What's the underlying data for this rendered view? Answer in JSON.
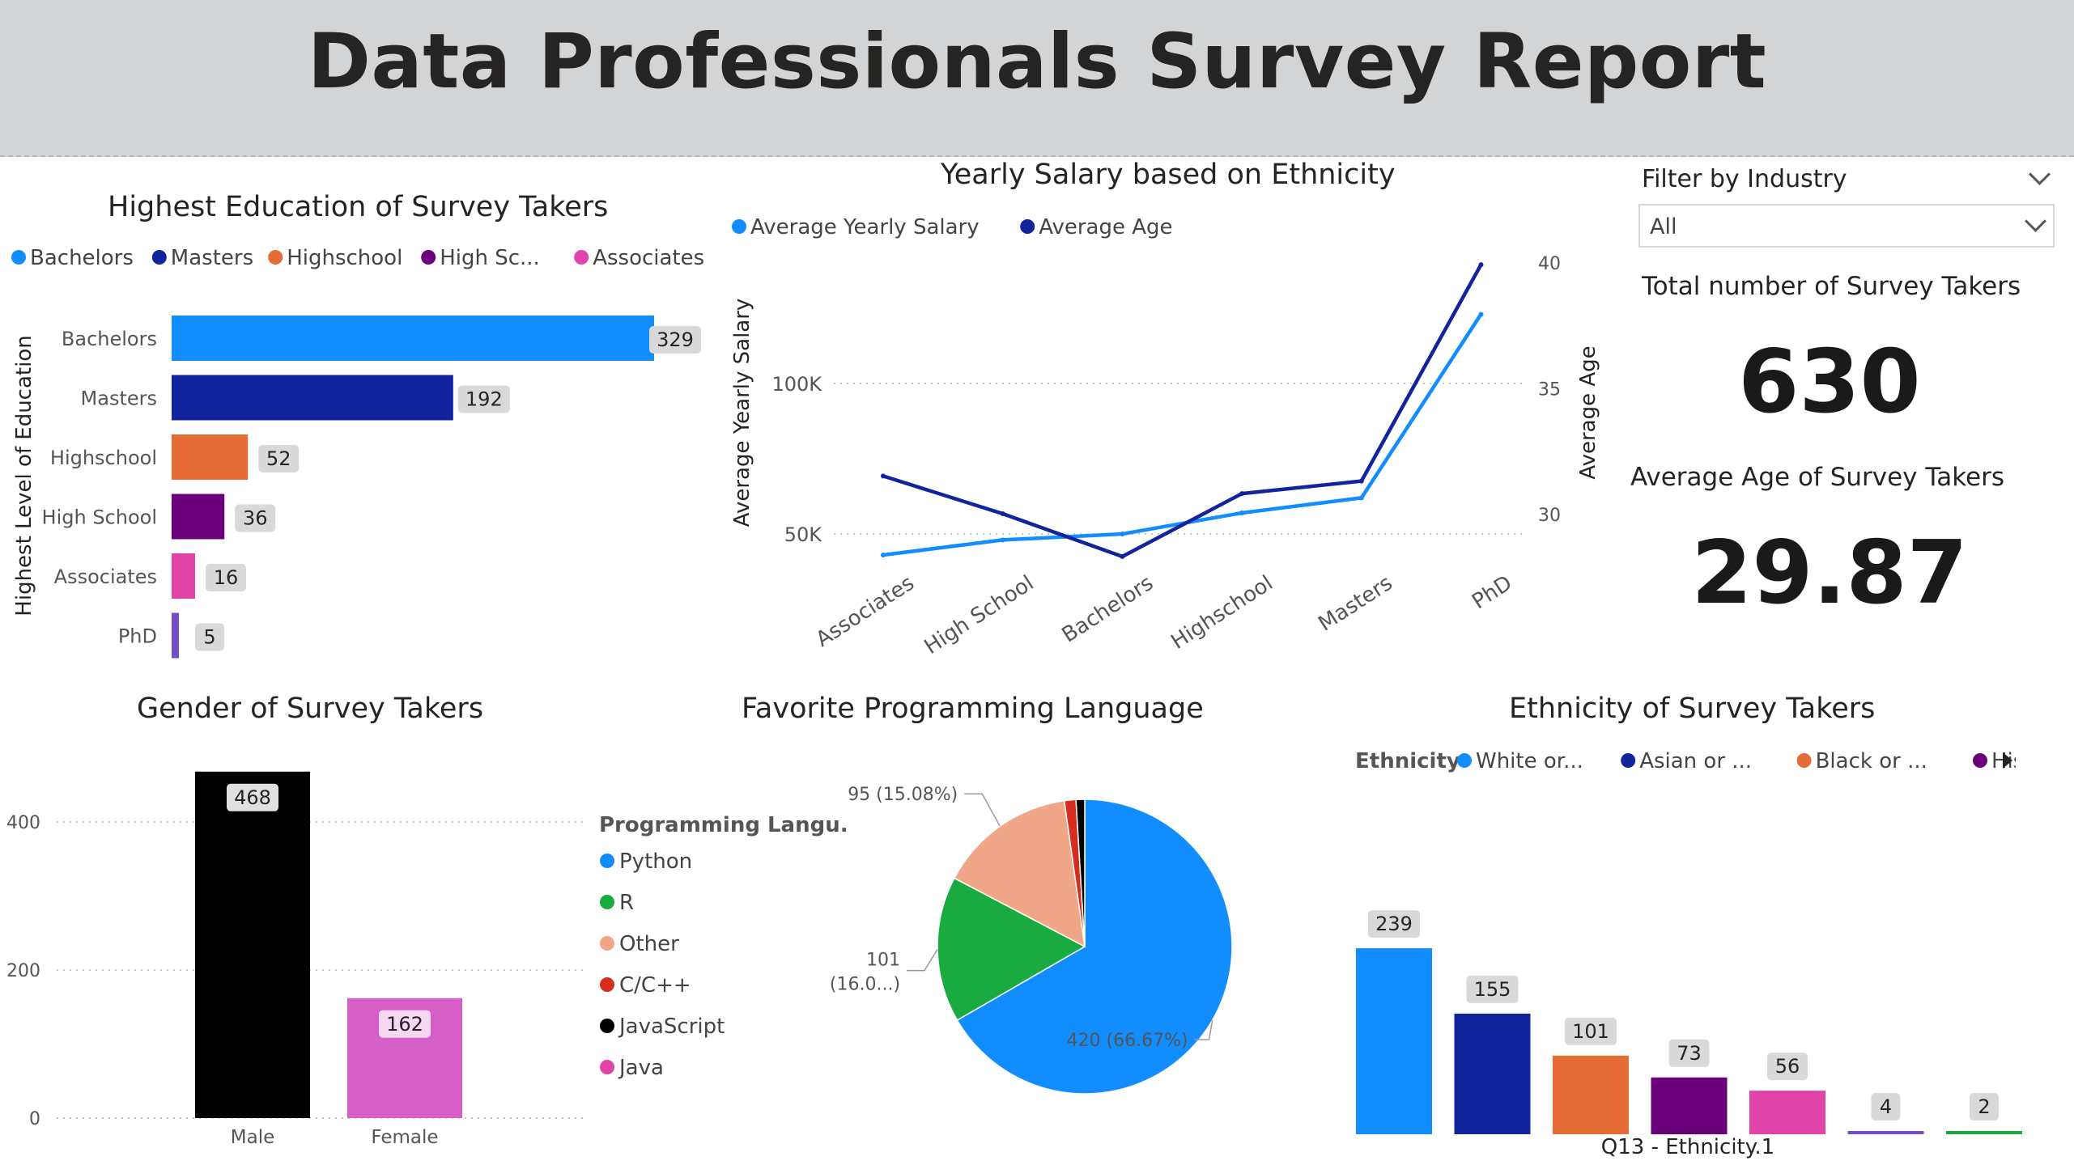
{
  "report_title": "Data Professionals Survey Report",
  "education_chart": {
    "title": "Highest Education of Survey Takers",
    "y_axis_label": "Highest Level of Education",
    "legend": [
      {
        "label": "Bachelors",
        "color": "#118dff"
      },
      {
        "label": "Masters",
        "color": "#12239e"
      },
      {
        "label": "Highschool",
        "color": "#e66c37"
      },
      {
        "label": "High Sc...",
        "color": "#6b007b"
      },
      {
        "label": "Associates",
        "color": "#e044a7"
      },
      {
        "label": "PhD",
        "color": "#744ec2"
      }
    ]
  },
  "salary_chart": {
    "title": "Yearly Salary based on Ethnicity",
    "y_axis_left_label": "Average Yearly Salary",
    "y_axis_right_label": "Average Age",
    "legend": [
      {
        "label": "Average Yearly Salary",
        "color": "#118dff"
      },
      {
        "label": "Average Age",
        "color": "#12239e"
      }
    ]
  },
  "filter": {
    "title": "Filter by Industry",
    "value": "All"
  },
  "kpis": {
    "total_label": "Total number of Survey Takers",
    "total_value": "630",
    "age_label": "Average Age of Survey Takers",
    "age_value": "29.87"
  },
  "gender_chart": {
    "title": "Gender of Survey Takers"
  },
  "language_chart": {
    "title": "Favorite Programming Language",
    "legend_title": "Programming Langu...",
    "legend": [
      {
        "label": "Python",
        "color": "#118dff"
      },
      {
        "label": "R",
        "color": "#1aab40"
      },
      {
        "label": "Other",
        "color": "#f0a787"
      },
      {
        "label": "C/C++",
        "color": "#d62d20"
      },
      {
        "label": "JavaScript",
        "color": "#000000"
      },
      {
        "label": "Java",
        "color": "#e044a7"
      }
    ],
    "slice_labels": {
      "python": "420 (66.67%)",
      "other": "95 (15.08%)",
      "r_line1": "101",
      "r_line2": "(16.0...)"
    }
  },
  "ethnicity_chart": {
    "title": "Ethnicity of Survey Takers",
    "legend_title": "Ethnicity",
    "legend": [
      {
        "label": "White or...",
        "color": "#118dff"
      },
      {
        "label": "Asian or ...",
        "color": "#12239e"
      },
      {
        "label": "Black or ...",
        "color": "#e66c37"
      },
      {
        "label": "Hispanic...",
        "color": "#6b007b"
      }
    ],
    "x_axis_label": "Q13 - Ethnicity.1"
  },
  "chart_data": [
    {
      "type": "bar",
      "orientation": "horizontal",
      "title": "Highest Education of Survey Takers",
      "ylabel": "Highest Level of Education",
      "categories": [
        "Bachelors",
        "Masters",
        "Highschool",
        "High School",
        "Associates",
        "PhD"
      ],
      "values": [
        329,
        192,
        52,
        36,
        16,
        5
      ],
      "colors": [
        "#118dff",
        "#12239e",
        "#e66c37",
        "#6b007b",
        "#e044a7",
        "#744ec2"
      ],
      "xlim": [
        0,
        329
      ]
    },
    {
      "type": "line",
      "title": "Yearly Salary based on Ethnicity",
      "categories": [
        "Associates",
        "High School",
        "Bachelors",
        "Highschool",
        "Masters",
        "PhD"
      ],
      "series": [
        {
          "name": "Average Yearly Salary",
          "axis": "left",
          "color": "#118dff",
          "values": [
            43000,
            48000,
            50000,
            57000,
            62000,
            123000
          ]
        },
        {
          "name": "Average Age",
          "axis": "right",
          "color": "#12239e",
          "values": [
            31.5,
            30.0,
            28.3,
            30.8,
            31.3,
            39.9
          ]
        }
      ],
      "left_ticks": [
        50000,
        100000
      ],
      "left_tick_labels": [
        "50K",
        "100K"
      ],
      "right_ticks": [
        30,
        35,
        40
      ],
      "right_tick_labels": [
        "30",
        "35",
        "40"
      ],
      "ylabel": "Average Yearly Salary",
      "y2label": "Average Age"
    },
    {
      "type": "bar",
      "title": "Gender of Survey Takers",
      "categories": [
        "Male",
        "Female"
      ],
      "values": [
        468,
        162
      ],
      "colors": [
        "#000000",
        "#d660c8"
      ],
      "y_ticks": [
        0,
        200,
        400
      ],
      "ylim": [
        0,
        468
      ]
    },
    {
      "type": "pie",
      "title": "Favorite Programming Language",
      "categories": [
        "Python",
        "R",
        "Other",
        "C/C++",
        "JavaScript",
        "Java"
      ],
      "values": [
        420,
        101,
        95,
        8,
        6,
        0
      ],
      "colors": [
        "#118dff",
        "#1aab40",
        "#f0a787",
        "#d62d20",
        "#000000",
        "#e044a7"
      ]
    },
    {
      "type": "bar",
      "title": "Ethnicity of Survey Takers",
      "values": [
        239,
        155,
        101,
        73,
        56,
        4,
        2
      ],
      "colors": [
        "#118dff",
        "#12239e",
        "#e66c37",
        "#6b007b",
        "#e044a7",
        "#744ec2",
        "#1aab40"
      ],
      "xlabel": "Q13 - Ethnicity.1",
      "ylim": [
        0,
        239
      ]
    }
  ]
}
